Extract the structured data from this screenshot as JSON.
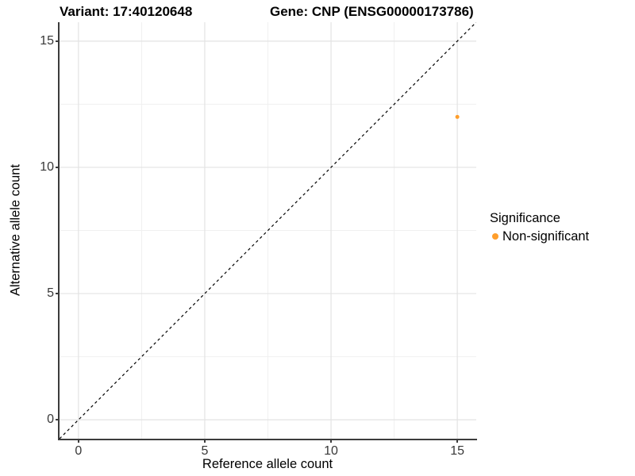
{
  "chart_data": {
    "type": "scatter",
    "title_left": "Variant: 17:40120648",
    "title_right": "Gene: CNP (ENSG00000173786)",
    "xlabel": "Reference allele count",
    "ylabel": "Alternative allele count",
    "xlim": [
      -0.75,
      15.75
    ],
    "ylim": [
      -0.75,
      15.75
    ],
    "xticks": [
      0,
      5,
      10,
      15
    ],
    "yticks": [
      0,
      5,
      10,
      15
    ],
    "xticks_minor": [
      2.5,
      7.5,
      12.5
    ],
    "yticks_minor": [
      2.5,
      7.5,
      12.5
    ],
    "grid": "major+minor",
    "identity_line": {
      "from": [
        -0.75,
        -0.75
      ],
      "to": [
        15.75,
        15.75
      ],
      "style": "dashed",
      "color": "#000000"
    },
    "series": [
      {
        "name": "Non-significant",
        "color": "#FF9E2B",
        "points": [
          {
            "x": 15,
            "y": 12
          }
        ]
      }
    ],
    "legend": {
      "title": "Significance",
      "position": "right",
      "items": [
        {
          "label": "Non-significant",
          "color": "#FF9E2B"
        }
      ]
    }
  },
  "style": {
    "grid_major_color": "#e3e3e3",
    "grid_minor_color": "#f0f0f0",
    "axis_color": "#3c3c3c",
    "point_radius": 2.5
  }
}
